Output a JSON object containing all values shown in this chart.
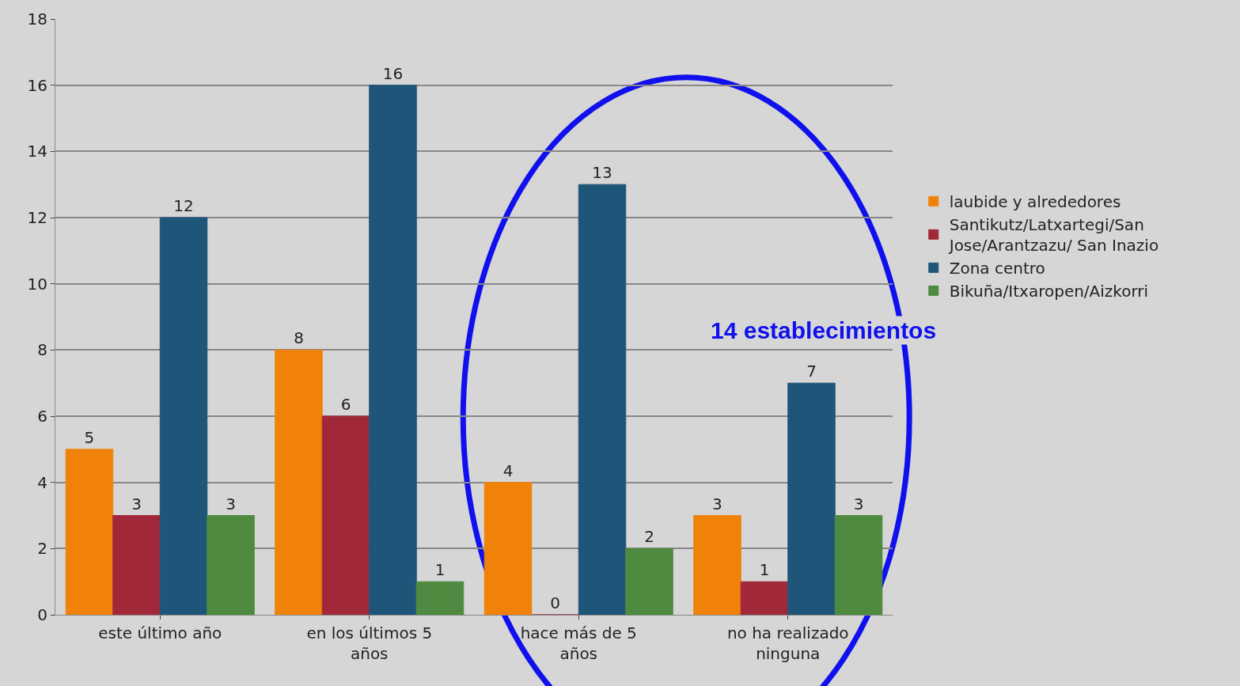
{
  "chart_data": {
    "type": "bar",
    "categories": [
      "este último año",
      "en los últimos 5 años",
      "hace más de 5 años",
      "no ha realizado ninguna"
    ],
    "series": [
      {
        "name": "laubide y alrededores",
        "color": "#f0820a",
        "values": [
          5,
          8,
          4,
          3
        ]
      },
      {
        "name": "Santikutz/Latxartegi/San Jose/Arantzazu/ San Inazio",
        "color": "#a02838",
        "values": [
          3,
          6,
          0,
          1
        ]
      },
      {
        "name": "Zona centro",
        "color": "#1f5578",
        "values": [
          12,
          16,
          13,
          7
        ]
      },
      {
        "name": "Bikuña/Itxaropen/Aizkorri",
        "color": "#4e8a40",
        "values": [
          3,
          1,
          2,
          3
        ]
      }
    ],
    "ylim": [
      0,
      18
    ],
    "yticks": [
      0,
      2,
      4,
      6,
      8,
      10,
      12,
      14,
      16,
      18
    ],
    "grid": "y",
    "legend": "right",
    "data_labels": true,
    "annotations": [
      "14 establecimientos"
    ]
  }
}
